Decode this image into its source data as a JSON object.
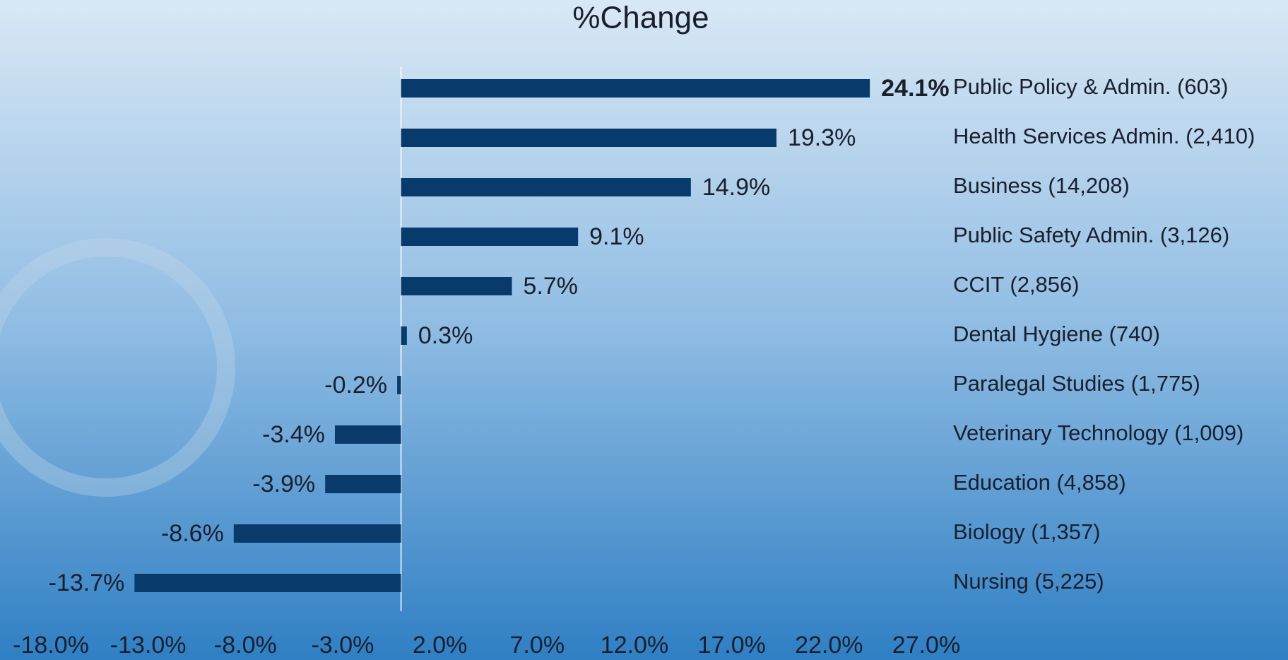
{
  "chart_data": {
    "type": "hbar",
    "title": "%Change",
    "categories": [
      "Public Policy & Admin. (603)",
      "Health Services Admin. (2,410)",
      "Business (14,208)",
      "Public Safety Admin. (3,126)",
      "CCIT (2,856)",
      "Dental Hygiene (740)",
      "Paralegal Studies (1,775)",
      "Veterinary Technology (1,009)",
      "Education (4,858)",
      "Biology (1,357)",
      "Nursing (5,225)"
    ],
    "values": [
      24.1,
      19.3,
      14.9,
      9.1,
      5.7,
      0.3,
      -0.2,
      -3.4,
      -3.9,
      -8.6,
      -13.7
    ],
    "value_labels": [
      "24.1%",
      "19.3%",
      "14.9%",
      "9.1%",
      "5.7%",
      "0.3%",
      "-0.2%",
      "-3.4%",
      "-3.9%",
      "-8.6%",
      "-13.7%"
    ],
    "color": "#083a6b",
    "xlim": [
      -18,
      27
    ],
    "xticks": [
      {
        "value": -18,
        "label": "-18.0%"
      },
      {
        "value": -13,
        "label": "-13.0%"
      },
      {
        "value": -8,
        "label": "-8.0%"
      },
      {
        "value": -3,
        "label": "-3.0%"
      },
      {
        "value": 2,
        "label": "2.0%"
      },
      {
        "value": 7,
        "label": "7.0%"
      },
      {
        "value": 12,
        "label": "12.0%"
      },
      {
        "value": 17,
        "label": "17.0%"
      },
      {
        "value": 22,
        "label": "22.0%"
      },
      {
        "value": 27,
        "label": "27.0%"
      }
    ]
  }
}
